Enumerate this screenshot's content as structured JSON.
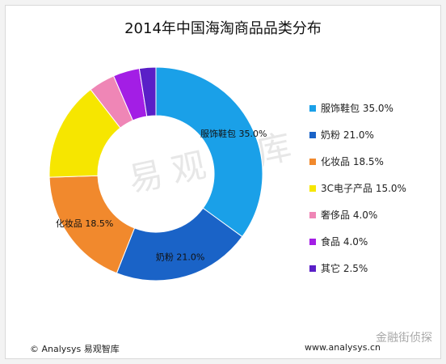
{
  "page": {
    "title": "2014年中国海淘商品品类分布",
    "footer_left": "© Analysys 易观智库",
    "footer_right": "www.analysys.cn",
    "watermark_text": "金融街侦探",
    "background_watermark": "易观智库"
  },
  "chart_data": {
    "type": "pie",
    "title": "2014年中国海淘商品品类分布",
    "slices": [
      {
        "label": "服饰鞋包",
        "value": 35.0,
        "color": "#1aa0e8",
        "display": "35.0%"
      },
      {
        "label": "奶粉",
        "value": 21.0,
        "color": "#1a63c7",
        "display": "21.0%"
      },
      {
        "label": "化妆品",
        "value": 18.5,
        "color": "#f1892d",
        "display": "18.5%"
      },
      {
        "label": "3C电子产品",
        "value": 15.0,
        "color": "#f6e600",
        "display": "15.0%"
      },
      {
        "label": "奢侈品",
        "value": 4.0,
        "color": "#ef86b6",
        "display": "4.0%"
      },
      {
        "label": "食品",
        "value": 4.0,
        "color": "#a31ee5",
        "display": "4.0%"
      },
      {
        "label": "其它",
        "value": 2.5,
        "color": "#5a1fc7",
        "display": "2.5%"
      }
    ],
    "legend_position": "right",
    "donut": true,
    "label_indices": [
      0,
      1,
      2
    ]
  }
}
